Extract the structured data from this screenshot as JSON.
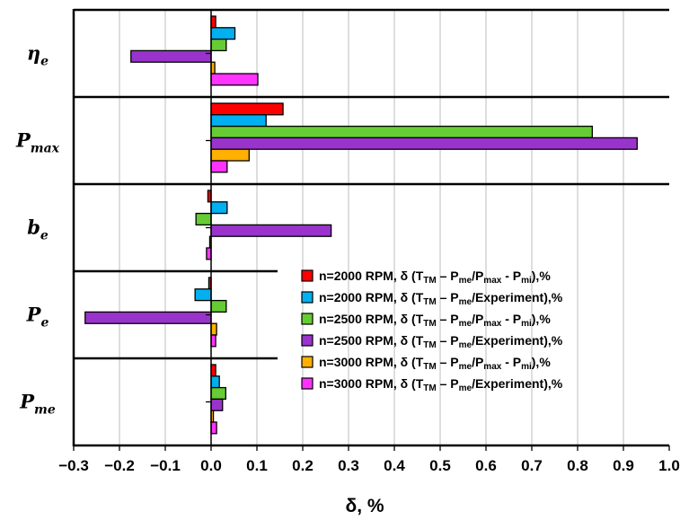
{
  "chart_data": {
    "type": "bar",
    "orientation": "horizontal",
    "categories": [
      "ηe",
      "Pmax",
      "be",
      "Pe",
      "Pme"
    ],
    "category_labels": [
      {
        "base": "η",
        "sub": "e"
      },
      {
        "base": "P",
        "sub": "max"
      },
      {
        "base": "b",
        "sub": "e"
      },
      {
        "base": "P",
        "sub": "e"
      },
      {
        "base": "P",
        "sub": "me"
      }
    ],
    "series": [
      {
        "name": "n=2000 RPM, δ (TTM – Pme/Pmax - Pmi),%",
        "color": "#ff0000",
        "legend": [
          {
            "t": "n=2000 RPM, δ (T"
          },
          {
            "t": "TM",
            "sub": true
          },
          {
            "t": " – P"
          },
          {
            "t": "me",
            "sub": true
          },
          {
            "t": "/P"
          },
          {
            "t": "max",
            "sub": true
          },
          {
            "t": " - P"
          },
          {
            "t": "mi",
            "sub": true
          },
          {
            "t": "),%"
          }
        ],
        "values": [
          0.01,
          0.157,
          -0.007,
          -0.005,
          0.01
        ]
      },
      {
        "name": "n=2000 RPM, δ (TTM – Pme/Experiment),%",
        "color": "#00b0f0",
        "legend": [
          {
            "t": "n=2000 RPM, δ (T"
          },
          {
            "t": "TM",
            "sub": true
          },
          {
            "t": " – P"
          },
          {
            "t": "me",
            "sub": true
          },
          {
            "t": "/Experiment),%"
          }
        ],
        "values": [
          0.052,
          0.12,
          0.035,
          -0.035,
          0.018
        ]
      },
      {
        "name": "n=2500 RPM, δ (TTM – Pme/Pmax - Pmi),%",
        "color": "#66cc33",
        "legend": [
          {
            "t": "n=2500 RPM, δ (T"
          },
          {
            "t": "TM",
            "sub": true
          },
          {
            "t": " – P"
          },
          {
            "t": "me",
            "sub": true
          },
          {
            "t": "/P"
          },
          {
            "t": "max",
            "sub": true
          },
          {
            "t": " - P"
          },
          {
            "t": "mi",
            "sub": true
          },
          {
            "t": "),%"
          }
        ],
        "values": [
          0.033,
          0.832,
          -0.033,
          0.033,
          0.032
        ]
      },
      {
        "name": "n=2500 RPM, δ (TTM – Pme/Experiment),%",
        "color": "#9933cc",
        "legend": [
          {
            "t": "n=2500 RPM, δ (T"
          },
          {
            "t": "TM",
            "sub": true
          },
          {
            "t": " – P"
          },
          {
            "t": "me",
            "sub": true
          },
          {
            "t": "/Experiment),%"
          }
        ],
        "values": [
          -0.175,
          0.93,
          0.262,
          -0.275,
          0.025
        ]
      },
      {
        "name": "n=3000 RPM, δ (TTM – Pme/Pmax - Pmi),%",
        "color": "#ffb000",
        "legend": [
          {
            "t": "n=3000 RPM, δ (T"
          },
          {
            "t": "TM",
            "sub": true
          },
          {
            "t": " – P"
          },
          {
            "t": "me",
            "sub": true
          },
          {
            "t": "/P"
          },
          {
            "t": "max",
            "sub": true
          },
          {
            "t": " - P"
          },
          {
            "t": "mi",
            "sub": true
          },
          {
            "t": "),%"
          }
        ],
        "values": [
          0.008,
          0.083,
          -0.003,
          0.012,
          0.005
        ]
      },
      {
        "name": "n=3000 RPM, δ (TTM – Pme/Experiment),%",
        "color": "#ff33ff",
        "legend": [
          {
            "t": "n=3000 RPM, δ (T"
          },
          {
            "t": "TM",
            "sub": true
          },
          {
            "t": " – P"
          },
          {
            "t": "me",
            "sub": true
          },
          {
            "t": "/Experiment),%"
          }
        ],
        "values": [
          0.102,
          0.035,
          -0.01,
          0.01,
          0.012
        ]
      }
    ],
    "xlabel": "δ, %",
    "xlim": [
      -0.3,
      1.0
    ],
    "xticks": [
      -0.3,
      -0.2,
      -0.1,
      0.0,
      0.1,
      0.2,
      0.3,
      0.4,
      0.5,
      0.6,
      0.7,
      0.8,
      0.9,
      1.0
    ],
    "xtick_labels": [
      "−0.3",
      "−0.2",
      "−0.1",
      "0.0",
      "0.1",
      "0.2",
      "0.3",
      "0.4",
      "0.5",
      "0.6",
      "0.7",
      "0.8",
      "0.9",
      "1.0"
    ],
    "grid": true,
    "legend_position": "right"
  }
}
